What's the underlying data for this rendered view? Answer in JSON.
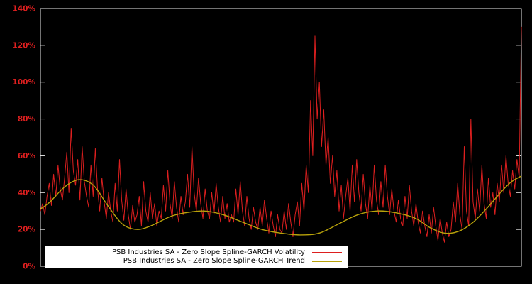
{
  "chart_data": {
    "type": "line",
    "title": "",
    "background_color": "#000000",
    "axis": {
      "ylim": [
        0,
        140
      ],
      "yticks": [
        "0%",
        "20%",
        "40%",
        "60%",
        "80%",
        "100%",
        "120%",
        "140%"
      ],
      "ytick_values": [
        0,
        20,
        40,
        60,
        80,
        100,
        120,
        140
      ],
      "ytick_color": "#dd1f1f",
      "frame_color": "#e8e8e8",
      "grid": false,
      "xticks": []
    },
    "legend": {
      "position": "bottom-left-inside",
      "background": "#ffffff"
    },
    "series": [
      {
        "name": "PSB Industries SA - Zero Slope Spline-GARCH Volatility",
        "color": "#dd1f1f",
        "unit": "%",
        "values": [
          30,
          34,
          28,
          38,
          45,
          33,
          50,
          38,
          55,
          42,
          36,
          48,
          62,
          40,
          75,
          52,
          44,
          58,
          36,
          65,
          46,
          38,
          32,
          55,
          38,
          64,
          42,
          30,
          48,
          35,
          26,
          40,
          30,
          24,
          45,
          30,
          58,
          36,
          25,
          42,
          28,
          20,
          33,
          24,
          28,
          38,
          22,
          46,
          30,
          24,
          40,
          26,
          34,
          22,
          30,
          26,
          44,
          30,
          52,
          34,
          26,
          46,
          32,
          24,
          38,
          28,
          35,
          50,
          32,
          65,
          40,
          30,
          48,
          34,
          26,
          42,
          30,
          26,
          40,
          28,
          45,
          32,
          24,
          38,
          26,
          34,
          24,
          28,
          24,
          42,
          28,
          46,
          30,
          22,
          38,
          26,
          20,
          32,
          24,
          20,
          32,
          22,
          36,
          26,
          18,
          30,
          22,
          16,
          28,
          20,
          18,
          30,
          20,
          34,
          24,
          16,
          28,
          35,
          22,
          45,
          30,
          55,
          40,
          90,
          60,
          125,
          80,
          100,
          65,
          85,
          55,
          70,
          45,
          60,
          38,
          52,
          30,
          44,
          26,
          38,
          48,
          30,
          55,
          35,
          58,
          40,
          30,
          50,
          34,
          26,
          44,
          30,
          55,
          36,
          28,
          46,
          32,
          55,
          38,
          28,
          42,
          30,
          24,
          36,
          26,
          22,
          38,
          26,
          44,
          30,
          22,
          34,
          24,
          18,
          30,
          22,
          16,
          28,
          18,
          32,
          22,
          14,
          26,
          18,
          13,
          24,
          16,
          20,
          35,
          24,
          45,
          28,
          20,
          65,
          30,
          22,
          80,
          35,
          26,
          42,
          30,
          55,
          34,
          26,
          48,
          32,
          40,
          28,
          45,
          35,
          55,
          40,
          60,
          45,
          38,
          52,
          42,
          58,
          48,
          130
        ]
      },
      {
        "name": "PSB Industries SA - Zero Slope Spline-GARCH Trend",
        "color": "#b8a20a",
        "unit": "%",
        "points": [
          [
            0.0,
            31
          ],
          [
            0.02,
            35
          ],
          [
            0.05,
            43
          ],
          [
            0.08,
            47
          ],
          [
            0.11,
            44
          ],
          [
            0.14,
            33
          ],
          [
            0.17,
            23
          ],
          [
            0.2,
            20
          ],
          [
            0.23,
            22
          ],
          [
            0.27,
            27
          ],
          [
            0.3,
            29
          ],
          [
            0.34,
            30
          ],
          [
            0.38,
            28
          ],
          [
            0.42,
            24
          ],
          [
            0.46,
            20
          ],
          [
            0.5,
            18
          ],
          [
            0.54,
            17
          ],
          [
            0.58,
            18
          ],
          [
            0.62,
            23
          ],
          [
            0.66,
            28
          ],
          [
            0.7,
            30
          ],
          [
            0.74,
            29
          ],
          [
            0.78,
            26
          ],
          [
            0.81,
            21
          ],
          [
            0.84,
            18
          ],
          [
            0.87,
            19
          ],
          [
            0.9,
            24
          ],
          [
            0.93,
            32
          ],
          [
            0.96,
            41
          ],
          [
            0.98,
            46
          ],
          [
            1.0,
            49
          ]
        ]
      }
    ]
  }
}
